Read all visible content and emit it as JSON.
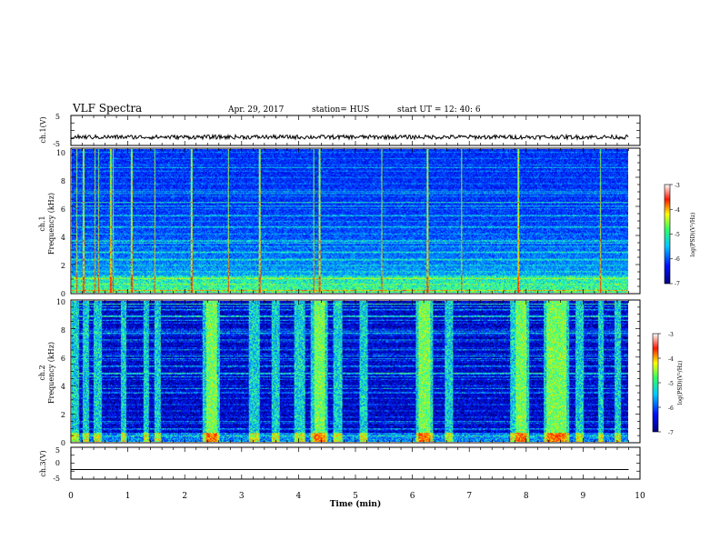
{
  "header": {
    "title": "VLF Spectra",
    "date": "Apr. 29, 2017",
    "station": "station= HUS",
    "start_time": "start  UT  =   12: 40: 6"
  },
  "chart_data": [
    {
      "type": "line",
      "ylabel": "ch.1(V)",
      "ylim": [
        -5,
        5
      ],
      "yticks": [
        "5",
        "-5"
      ],
      "baseline_v": -2.2,
      "noise_v": 0.7
    },
    {
      "type": "heatmap",
      "ylabel": "ch.1",
      "ylabel_sub": "Frequency  (kHz)",
      "ylim": [
        0,
        10
      ],
      "yticks": [
        "0",
        "2",
        "4",
        "6",
        "8",
        "10"
      ],
      "colorbar": {
        "label": "log(PSD)(V²/Hz)",
        "range": [
          -7,
          -3
        ],
        "ticks": [
          "-3",
          "-4",
          "-5",
          "-6",
          "-7"
        ]
      },
      "bright_lines_min": [
        0.08,
        0.2,
        0.4,
        0.46,
        0.68,
        0.72,
        1.05,
        1.45,
        2.1,
        2.75,
        3.3,
        4.25,
        4.35,
        5.45,
        6.25,
        6.85,
        7.85,
        9.3
      ]
    },
    {
      "type": "heatmap",
      "ylabel": "ch.2",
      "ylabel_sub": "Frequency  (kHz)",
      "ylim": [
        0,
        10
      ],
      "yticks": [
        "0",
        "2",
        "4",
        "6",
        "8",
        "10"
      ],
      "colorbar": {
        "label": "log(PSD)(V²/Hz)",
        "range": [
          -7,
          -3
        ],
        "ticks": [
          "-3",
          "-4",
          "-5",
          "-6",
          "-7"
        ]
      },
      "bursts_min": [
        [
          0.0,
          0.12
        ],
        [
          0.18,
          0.3
        ],
        [
          0.38,
          0.52
        ],
        [
          0.85,
          0.95
        ],
        [
          1.25,
          1.35
        ],
        [
          1.45,
          1.55
        ],
        [
          2.3,
          2.6
        ],
        [
          3.1,
          3.3
        ],
        [
          3.5,
          3.65
        ],
        [
          3.9,
          4.1
        ],
        [
          4.2,
          4.5
        ],
        [
          4.6,
          4.75
        ],
        [
          5.05,
          5.2
        ],
        [
          6.05,
          6.35
        ],
        [
          6.55,
          6.7
        ],
        [
          7.7,
          8.05
        ],
        [
          8.3,
          8.75
        ],
        [
          8.85,
          9.0
        ],
        [
          9.25,
          9.35
        ],
        [
          9.55,
          9.65
        ]
      ],
      "intense_bursts_min": [
        [
          2.35,
          2.55
        ],
        [
          4.25,
          4.45
        ],
        [
          6.1,
          6.3
        ],
        [
          7.8,
          8.0
        ],
        [
          8.35,
          8.7
        ]
      ]
    },
    {
      "type": "line",
      "ylabel": "ch.3(V)",
      "ylim": [
        -5,
        5
      ],
      "yticks": [
        "5",
        "0",
        "-5"
      ],
      "baseline_v": -2.0
    }
  ],
  "x_axis": {
    "label": "Time  (min)",
    "range": [
      0,
      10
    ],
    "ticks": [
      "0",
      "1",
      "2",
      "3",
      "4",
      "5",
      "6",
      "7",
      "8",
      "9",
      "10"
    ],
    "data_end_min": 9.8
  }
}
